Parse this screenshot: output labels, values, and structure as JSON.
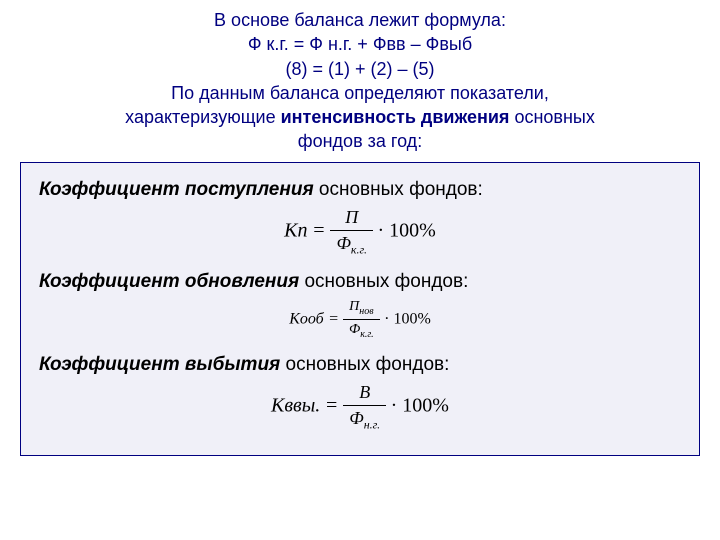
{
  "intro": {
    "line1": "В основе баланса лежит формула:",
    "line2": "Ф к.г. = Ф н.г. + Фвв – Фвыб",
    "line3": "(8)   =   (1)   +  (2) – (5)",
    "line4a": "По данным баланса определяют показатели,",
    "line4b_pre": "характеризующие ",
    "line4b_bold": "интенсивность движения",
    "line4b_post": " основных",
    "line5": "фондов за год:"
  },
  "coef1": {
    "title_bold": "Коэффициент поступления",
    "title_rest": " основных фондов:",
    "lhs": "Kп",
    "eq": " = ",
    "num": "П",
    "den_main": "Ф",
    "den_sub": "к.г.",
    "tail": " · 100%"
  },
  "coef2": {
    "title_bold": "Коэффициент обновления",
    "title_rest": " основных фондов:",
    "lhs": "Kооб",
    "eq": " = ",
    "num_main": "П",
    "num_sub": "нов",
    "den_main": "Ф",
    "den_sub": "к.г.",
    "tail": " · 100%"
  },
  "coef3": {
    "title_bold": "Коэффициент выбытия",
    "title_rest": " основных фондов:",
    "lhs": "Kввы.",
    "eq": " = ",
    "num": "В",
    "den_main": "Ф",
    "den_sub": "н.г.",
    "tail": " · 100%"
  },
  "colors": {
    "title_color": "#000080",
    "box_border": "#000080",
    "box_bg": "#f0f0f8",
    "text": "#000000"
  }
}
